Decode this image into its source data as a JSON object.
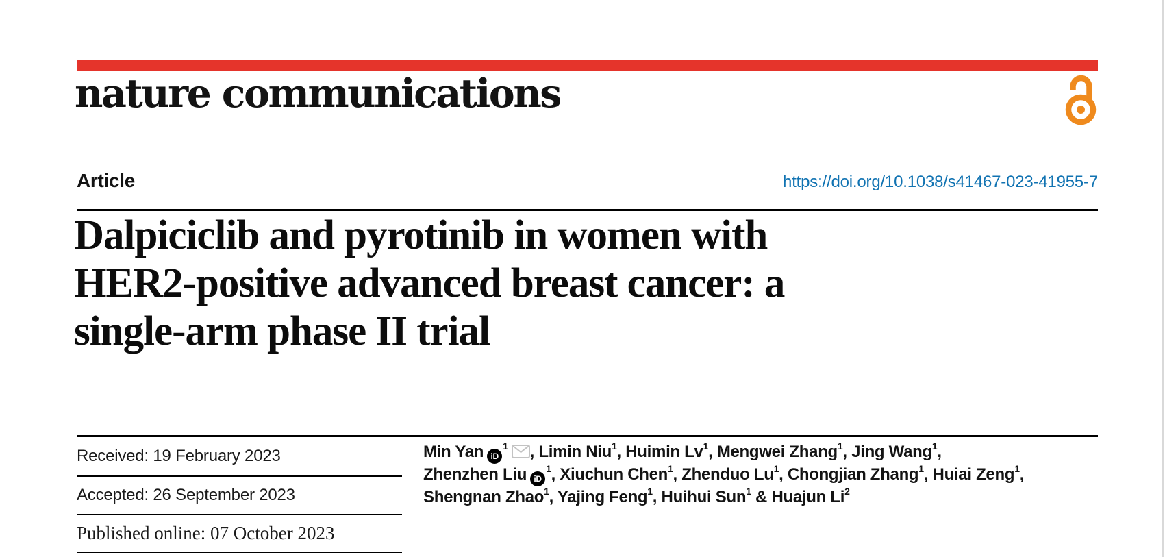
{
  "journal": {
    "name": "nature communications",
    "open_access_icon": "open-access-icon"
  },
  "colors": {
    "brand_red": "#e5342b",
    "link_blue": "#1173b2",
    "open_access_orange": "#ef8a1d",
    "text_black": "#131313"
  },
  "article": {
    "kind_label": "Article",
    "doi_text": "https://doi.org/10.1038/s41467-023-41955-7",
    "title_lines": [
      "Dalpiciclib and pyrotinib in women with",
      "HER2-positive advanced breast cancer: a",
      "single-arm phase II trial"
    ]
  },
  "dates": {
    "received": "Received: 19 February 2023",
    "accepted": "Accepted: 26 September 2023",
    "published": "Published online: 07 October 2023"
  },
  "authors": {
    "lines": [
      [
        {
          "t": "Min Yan"
        },
        {
          "icon": "orcid"
        },
        {
          "sup": "1"
        },
        {
          "icon": "mail"
        },
        {
          "t": ", Limin Niu"
        },
        {
          "sup": "1"
        },
        {
          "t": ", Huimin Lv"
        },
        {
          "sup": "1"
        },
        {
          "t": ", Mengwei Zhang"
        },
        {
          "sup": "1"
        },
        {
          "t": ", Jing Wang"
        },
        {
          "sup": "1"
        },
        {
          "t": ","
        }
      ],
      [
        {
          "t": "Zhenzhen Liu"
        },
        {
          "icon": "orcid"
        },
        {
          "sup": "1"
        },
        {
          "t": ", Xiuchun Chen"
        },
        {
          "sup": "1"
        },
        {
          "t": ", Zhenduo Lu"
        },
        {
          "sup": "1"
        },
        {
          "t": ", Chongjian Zhang"
        },
        {
          "sup": "1"
        },
        {
          "t": ", Huiai Zeng"
        },
        {
          "sup": "1"
        },
        {
          "t": ","
        }
      ],
      [
        {
          "t": "Shengnan Zhao"
        },
        {
          "sup": "1"
        },
        {
          "t": ", Yajing Feng"
        },
        {
          "sup": "1"
        },
        {
          "t": ", Huihui Sun"
        },
        {
          "sup": "1"
        },
        {
          "t": " & Huajun Li"
        },
        {
          "sup": "2"
        }
      ]
    ],
    "orcid_icon_label": "iD"
  }
}
